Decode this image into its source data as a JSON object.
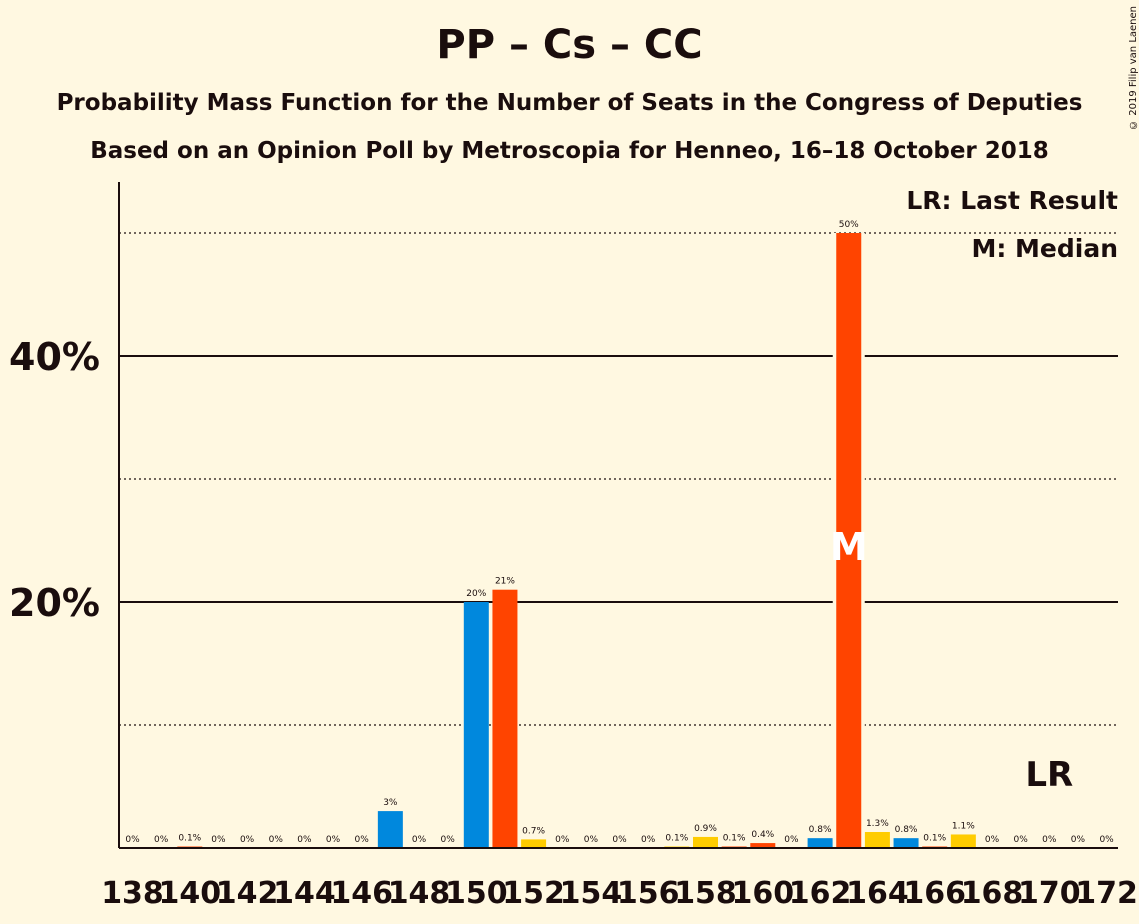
{
  "title": "PP – Cs – CC",
  "subtitle": "Probability Mass Function for the Number of Seats in the Congress of Deputies",
  "subtitle2": "Based on an Opinion Poll by Metroscopia for Henneo, 16–18 October 2018",
  "copyright": "© 2019 Filip van Laenen",
  "legend": {
    "last_result": "LR: Last Result",
    "median": "M: Median"
  },
  "markers": {
    "median_label": "M",
    "last_result_label": "LR",
    "median_seat": 163,
    "last_result_seat": 170
  },
  "colors": {
    "background": "#fff8e1",
    "blue": "#0088dd",
    "orange": "#ff4400",
    "yellow": "#ffcc00"
  },
  "chart_data": {
    "type": "bar",
    "ylim": [
      0,
      54
    ],
    "yticks_major": [
      20,
      40
    ],
    "yticks_minor": [
      10,
      30,
      50
    ],
    "ytick_labels": [
      "20%",
      "40%"
    ],
    "xtick_labels": [
      "138",
      "140",
      "142",
      "144",
      "146",
      "148",
      "150",
      "152",
      "154",
      "156",
      "158",
      "160",
      "162",
      "164",
      "166",
      "168",
      "170",
      "172"
    ],
    "bars": [
      {
        "seat": 138,
        "value": 0,
        "label": "0%",
        "color": "orange"
      },
      {
        "seat": 139,
        "value": 0,
        "label": "0%",
        "color": "orange"
      },
      {
        "seat": 140,
        "value": 0.1,
        "label": "0.1%",
        "color": "orange"
      },
      {
        "seat": 141,
        "value": 0,
        "label": "0%",
        "color": "orange"
      },
      {
        "seat": 142,
        "value": 0,
        "label": "0%",
        "color": "orange"
      },
      {
        "seat": 143,
        "value": 0,
        "label": "0%",
        "color": "orange"
      },
      {
        "seat": 144,
        "value": 0,
        "label": "0%",
        "color": "orange"
      },
      {
        "seat": 145,
        "value": 0,
        "label": "0%",
        "color": "orange"
      },
      {
        "seat": 146,
        "value": 0,
        "label": "0%",
        "color": "orange"
      },
      {
        "seat": 147,
        "value": 3,
        "label": "3%",
        "color": "blue"
      },
      {
        "seat": 148,
        "value": 0,
        "label": "0%",
        "color": "orange"
      },
      {
        "seat": 149,
        "value": 0,
        "label": "0%",
        "color": "orange"
      },
      {
        "seat": 150,
        "value": 20,
        "label": "20%",
        "color": "blue"
      },
      {
        "seat": 151,
        "value": 21,
        "label": "21%",
        "color": "orange"
      },
      {
        "seat": 152,
        "value": 0.7,
        "label": "0.7%",
        "color": "yellow"
      },
      {
        "seat": 153,
        "value": 0,
        "label": "0%",
        "color": "orange"
      },
      {
        "seat": 154,
        "value": 0,
        "label": "0%",
        "color": "orange"
      },
      {
        "seat": 155,
        "value": 0,
        "label": "0%",
        "color": "orange"
      },
      {
        "seat": 156,
        "value": 0,
        "label": "0%",
        "color": "orange"
      },
      {
        "seat": 157,
        "value": 0.1,
        "label": "0.1%",
        "color": "yellow"
      },
      {
        "seat": 158,
        "value": 0.9,
        "label": "0.9%",
        "color": "yellow"
      },
      {
        "seat": 159,
        "value": 0.1,
        "label": "0.1%",
        "color": "orange"
      },
      {
        "seat": 160,
        "value": 0.4,
        "label": "0.4%",
        "color": "orange"
      },
      {
        "seat": 161,
        "value": 0,
        "label": "0%",
        "color": "orange"
      },
      {
        "seat": 162,
        "value": 0.8,
        "label": "0.8%",
        "color": "blue"
      },
      {
        "seat": 163,
        "value": 50,
        "label": "50%",
        "color": "orange"
      },
      {
        "seat": 164,
        "value": 1.3,
        "label": "1.3%",
        "color": "yellow"
      },
      {
        "seat": 165,
        "value": 0.8,
        "label": "0.8%",
        "color": "blue"
      },
      {
        "seat": 166,
        "value": 0.1,
        "label": "0.1%",
        "color": "orange"
      },
      {
        "seat": 167,
        "value": 1.1,
        "label": "1.1%",
        "color": "yellow"
      },
      {
        "seat": 168,
        "value": 0,
        "label": "0%",
        "color": "orange"
      },
      {
        "seat": 169,
        "value": 0,
        "label": "0%",
        "color": "orange"
      },
      {
        "seat": 170,
        "value": 0,
        "label": "0%",
        "color": "orange"
      },
      {
        "seat": 171,
        "value": 0,
        "label": "0%",
        "color": "orange"
      },
      {
        "seat": 172,
        "value": 0,
        "label": "0%",
        "color": "orange"
      }
    ]
  }
}
